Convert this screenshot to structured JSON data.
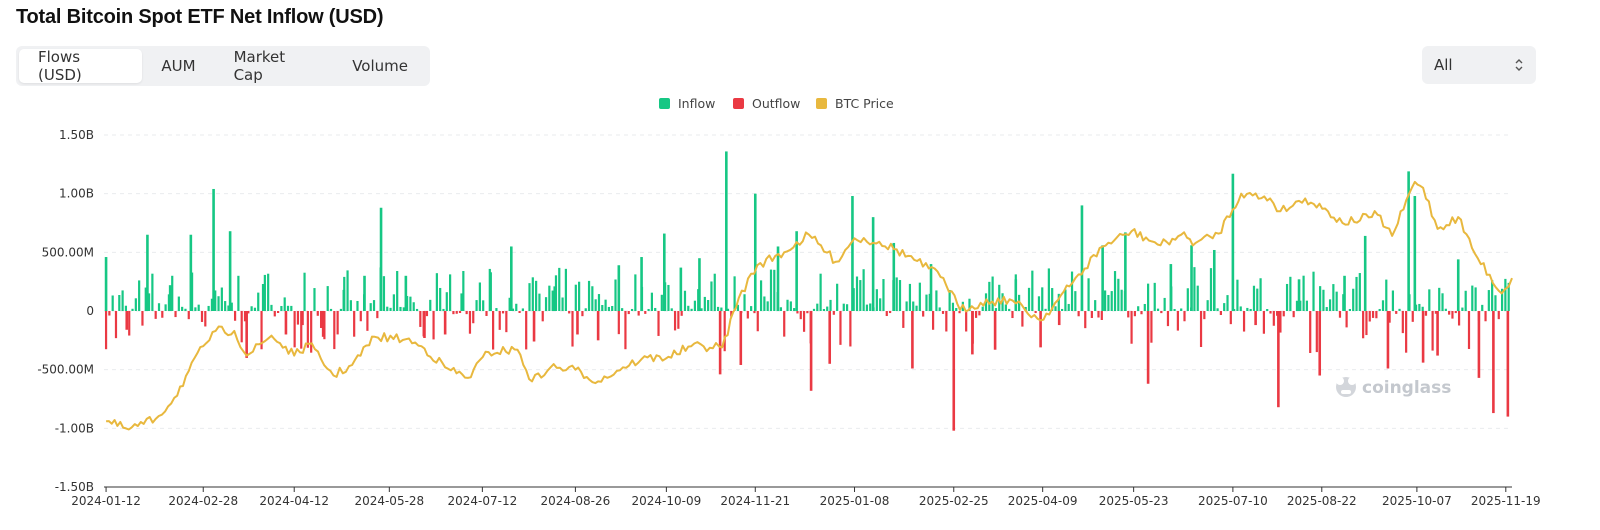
{
  "header": {
    "title": "Total Bitcoin Spot ETF Net Inflow (USD)"
  },
  "tabs": [
    {
      "label": "Flows (USD)",
      "active": true
    },
    {
      "label": "AUM",
      "active": false
    },
    {
      "label": "Market Cap",
      "active": false
    },
    {
      "label": "Volume",
      "active": false
    }
  ],
  "range_select": {
    "value": "All"
  },
  "watermark": {
    "text": "coinglass"
  },
  "colors": {
    "inflow": "#16c784",
    "outflow": "#ea3943",
    "price": "#e8b83e",
    "grid": "#e9ebee"
  },
  "chart_data": {
    "type": "bar",
    "title": "Total Bitcoin Spot ETF Net Inflow (USD)",
    "legend": {
      "position": "top-center",
      "entries": [
        "Inflow",
        "Outflow",
        "BTC Price"
      ]
    },
    "grid": true,
    "y_axis": {
      "ylim": [
        -1500000000,
        1500000000
      ],
      "ticks": [
        1500000000,
        1000000000,
        500000000,
        0,
        -500000000,
        -1000000000,
        -1500000000
      ],
      "tick_labels": [
        "1.50B",
        "1.00B",
        "500.00M",
        "0",
        "-500.00M",
        "-1.00B",
        "-1.50B"
      ]
    },
    "x_axis": {
      "xlim": [
        "2024-01-11",
        "2025-11-22"
      ],
      "tick_labels": [
        "2024-01-12",
        "2024-02-28",
        "2024-04-12",
        "2024-05-28",
        "2024-07-12",
        "2024-08-26",
        "2024-10-09",
        "2024-11-21",
        "2025-01-08",
        "2025-02-25",
        "2025-04-09",
        "2025-05-23",
        "2025-07-10",
        "2025-08-22",
        "2025-10-07",
        "2025-11-19"
      ]
    },
    "flows": {
      "name": "Net Inflow",
      "x": [
        "2024-01-12",
        "2024-01-22",
        "2024-02-01",
        "2024-02-12",
        "2024-02-22",
        "2024-03-04",
        "2024-03-12",
        "2024-03-20",
        "2024-03-28",
        "2024-04-08",
        "2024-04-16",
        "2024-04-26",
        "2024-05-06",
        "2024-05-16",
        "2024-05-24",
        "2024-06-05",
        "2024-06-14",
        "2024-06-24",
        "2024-07-02",
        "2024-07-16",
        "2024-07-26",
        "2024-08-06",
        "2024-08-16",
        "2024-08-27",
        "2024-09-06",
        "2024-09-16",
        "2024-09-27",
        "2024-10-08",
        "2024-10-16",
        "2024-10-25",
        "2024-11-04",
        "2024-11-07",
        "2024-11-14",
        "2024-11-21",
        "2024-12-02",
        "2024-12-11",
        "2024-12-18",
        "2024-12-27",
        "2025-01-07",
        "2025-01-17",
        "2025-01-27",
        "2025-02-05",
        "2025-02-14",
        "2025-02-25",
        "2025-03-06",
        "2025-03-17",
        "2025-03-27",
        "2025-04-08",
        "2025-04-17",
        "2025-04-28",
        "2025-05-08",
        "2025-05-19",
        "2025-05-30",
        "2025-06-10",
        "2025-06-20",
        "2025-07-01",
        "2025-07-10",
        "2025-07-21",
        "2025-08-01",
        "2025-08-11",
        "2025-08-21",
        "2025-09-02",
        "2025-09-12",
        "2025-09-23",
        "2025-10-03",
        "2025-10-06",
        "2025-10-10",
        "2025-10-17",
        "2025-10-27",
        "2025-11-06",
        "2025-11-13",
        "2025-11-20"
      ],
      "values": [
        460000000,
        -160000000,
        650000000,
        220000000,
        650000000,
        1040000000,
        680000000,
        -400000000,
        230000000,
        -200000000,
        -120000000,
        -220000000,
        180000000,
        300000000,
        880000000,
        300000000,
        -230000000,
        -200000000,
        150000000,
        330000000,
        550000000,
        -260000000,
        210000000,
        -200000000,
        -250000000,
        390000000,
        460000000,
        660000000,
        370000000,
        450000000,
        -540000000,
        1360000000,
        -460000000,
        1000000000,
        550000000,
        680000000,
        -680000000,
        -450000000,
        980000000,
        800000000,
        580000000,
        -490000000,
        400000000,
        -1020000000,
        -370000000,
        -330000000,
        270000000,
        -310000000,
        -120000000,
        900000000,
        560000000,
        670000000,
        -620000000,
        400000000,
        560000000,
        520000000,
        1170000000,
        -120000000,
        -820000000,
        270000000,
        -550000000,
        300000000,
        640000000,
        -490000000,
        1190000000,
        980000000,
        -440000000,
        -380000000,
        440000000,
        -570000000,
        -870000000,
        -900000000
      ]
    },
    "btc_price": {
      "name": "BTC Price",
      "x": [
        "2024-01-12",
        "2024-01-23",
        "2024-02-05",
        "2024-02-14",
        "2024-02-28",
        "2024-03-05",
        "2024-03-14",
        "2024-03-20",
        "2024-04-01",
        "2024-04-12",
        "2024-04-19",
        "2024-05-01",
        "2024-05-10",
        "2024-05-21",
        "2024-06-05",
        "2024-06-14",
        "2024-06-24",
        "2024-07-05",
        "2024-07-15",
        "2024-07-29",
        "2024-08-05",
        "2024-08-14",
        "2024-08-26",
        "2024-09-06",
        "2024-09-18",
        "2024-09-27",
        "2024-10-10",
        "2024-10-21",
        "2024-11-05",
        "2024-11-13",
        "2024-11-22",
        "2024-12-05",
        "2024-12-17",
        "2024-12-30",
        "2025-01-08",
        "2025-01-20",
        "2025-02-03",
        "2025-02-20",
        "2025-02-28",
        "2025-03-10",
        "2025-03-24",
        "2025-04-08",
        "2025-04-22",
        "2025-05-08",
        "2025-05-22",
        "2025-06-05",
        "2025-06-15",
        "2025-06-22",
        "2025-07-03",
        "2025-07-14",
        "2025-07-28",
        "2025-08-02",
        "2025-08-14",
        "2025-08-25",
        "2025-09-01",
        "2025-09-18",
        "2025-09-25",
        "2025-10-06",
        "2025-10-10",
        "2025-10-17",
        "2025-10-27",
        "2025-11-04",
        "2025-11-17",
        "2025-11-22"
      ],
      "y_on_flow_axis": [
        -940000000,
        -1010000000,
        -920000000,
        -740000000,
        -300000000,
        -170000000,
        -170000000,
        -380000000,
        -210000000,
        -380000000,
        -280000000,
        -550000000,
        -460000000,
        -220000000,
        -240000000,
        -320000000,
        -480000000,
        -570000000,
        -350000000,
        -330000000,
        -600000000,
        -480000000,
        -500000000,
        -600000000,
        -480000000,
        -410000000,
        -390000000,
        -300000000,
        -310000000,
        110000000,
        390000000,
        500000000,
        650000000,
        420000000,
        620000000,
        590000000,
        470000000,
        280000000,
        10000000,
        70000000,
        100000000,
        -80000000,
        210000000,
        550000000,
        680000000,
        560000000,
        650000000,
        580000000,
        660000000,
        1000000000,
        960000000,
        850000000,
        960000000,
        850000000,
        750000000,
        820000000,
        640000000,
        1100000000,
        1050000000,
        700000000,
        800000000,
        490000000,
        150000000,
        280000000
      ]
    }
  }
}
